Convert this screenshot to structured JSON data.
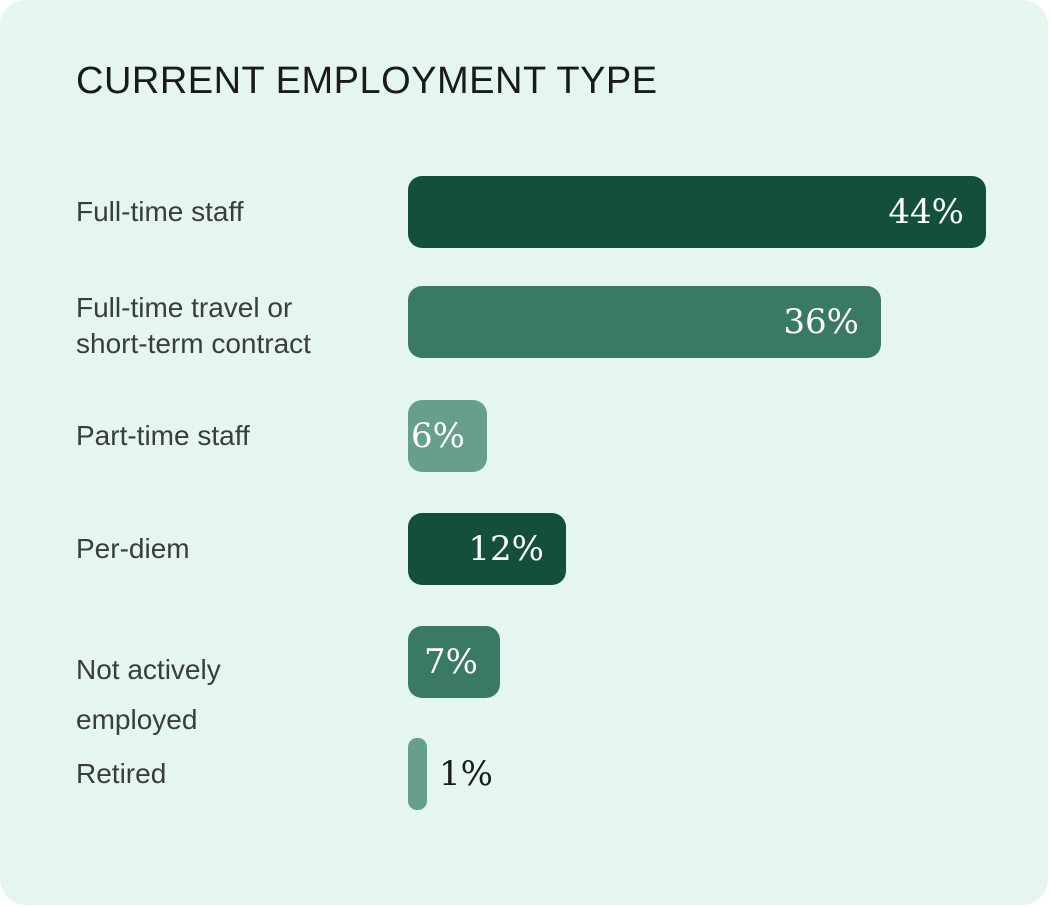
{
  "chart_data": {
    "type": "bar",
    "orientation": "horizontal",
    "title": "CURRENT EMPLOYMENT TYPE",
    "categories": [
      "Full-time staff",
      "Full-time travel or\nshort-term contract",
      "Part-time staff",
      "Per-diem",
      "Not actively\nemployed",
      "Retired"
    ],
    "values": [
      44,
      36,
      6,
      12,
      7,
      1
    ],
    "value_labels": [
      "44%",
      "36%",
      "6%",
      "12%",
      "7%",
      "1%"
    ],
    "unit": "%",
    "xlim": [
      0,
      44
    ],
    "grid": false,
    "legend": "none",
    "colors": [
      "#134f3c",
      "#3a7a65",
      "#66a08c",
      "#134f3c",
      "#3a7a65",
      "#66a08c"
    ],
    "label_color_inside": "#ffffff",
    "label_color_outside": "#1a1a1a"
  }
}
